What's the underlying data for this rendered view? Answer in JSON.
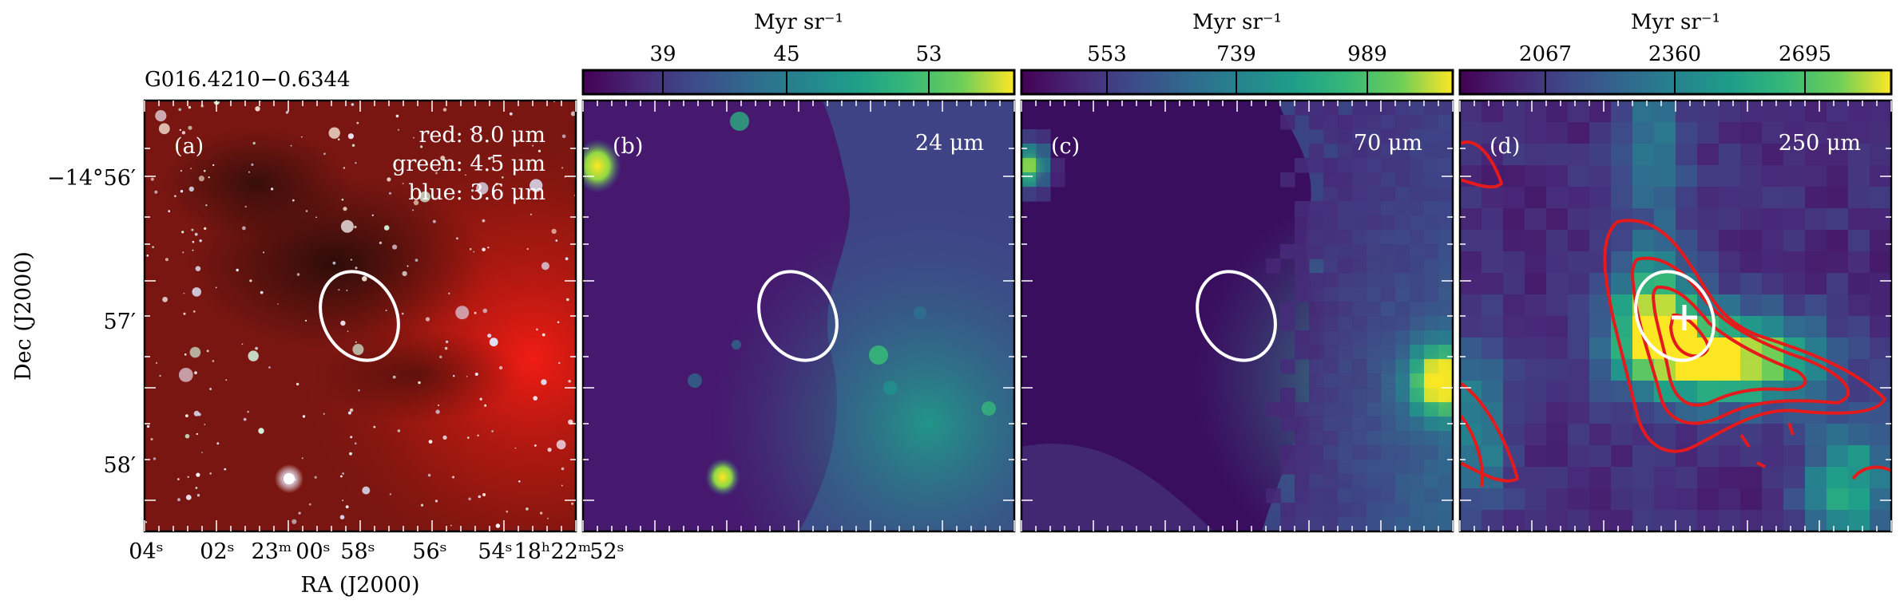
{
  "source_name": "G016.4210−0.6344",
  "axes": {
    "xlabel": "RA (J2000)",
    "ylabel": "Dec (J2000)",
    "ra_ticks": [
      "04ˢ",
      "02ˢ",
      "23ᵐ",
      "00ˢ",
      "58ˢ",
      "56ˢ",
      "54ˢ",
      "18ʰ22ᵐ",
      "52ˢ"
    ],
    "dec_ticks": [
      "−14°56′",
      "57′",
      "58′"
    ]
  },
  "panels": [
    {
      "label": "(a)",
      "legend": [
        "red: 8.0 μm",
        "green: 4.5 μm",
        "blue: 3.6 μm"
      ]
    },
    {
      "label": "(b)",
      "band": "24 μm",
      "colorbar": {
        "unit": "Myr sr⁻¹",
        "ticks": [
          "39",
          "45",
          "53"
        ]
      }
    },
    {
      "label": "(c)",
      "band": "70 μm",
      "colorbar": {
        "unit": "Myr sr⁻¹",
        "ticks": [
          "553",
          "739",
          "989"
        ]
      }
    },
    {
      "label": "(d)",
      "band": "250 μm",
      "colorbar": {
        "unit": "Myr sr⁻¹",
        "ticks": [
          "2067",
          "2360",
          "2695"
        ]
      }
    }
  ],
  "colors": {
    "viridis_dark": "#440154",
    "viridis_mid": "#21918c",
    "viridis_bright": "#fde725",
    "contour": "#e41a1c",
    "ellipse": "#ffffff",
    "ir_red": "#8a1410"
  }
}
